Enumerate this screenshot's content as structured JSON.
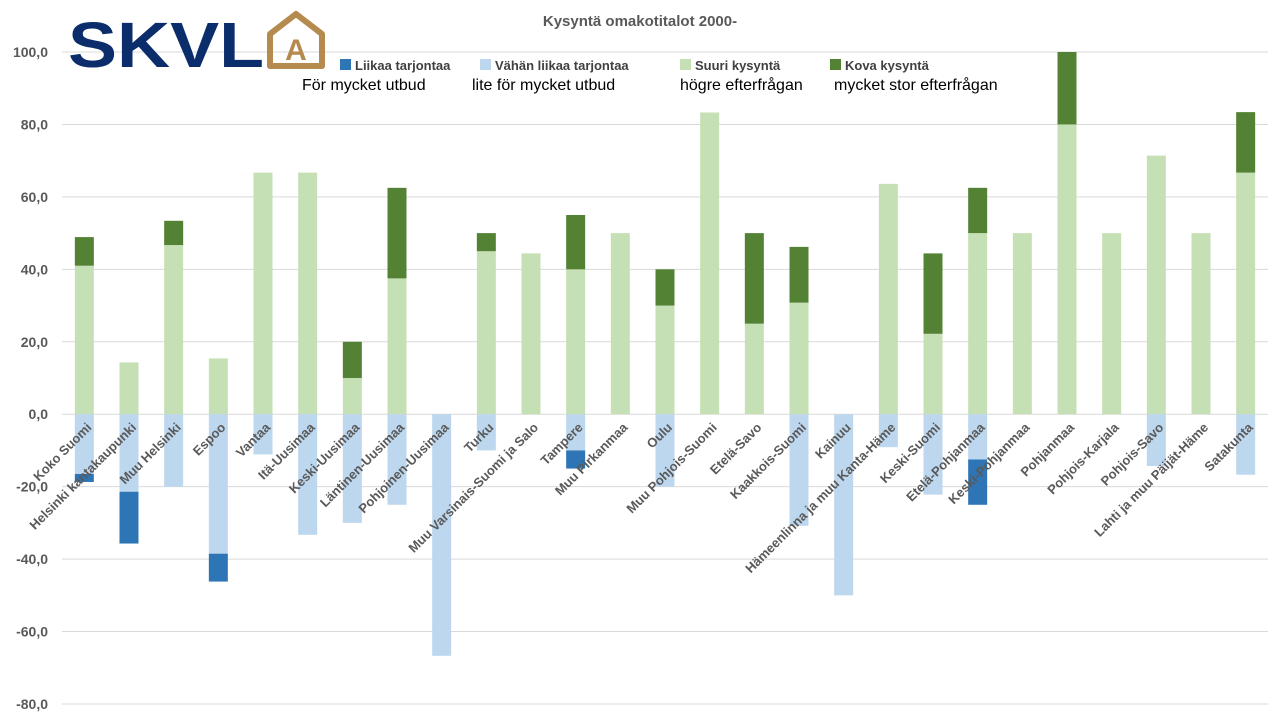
{
  "logo": {
    "text": "SKVL",
    "mark": "A",
    "text_color": "#0b2d6b",
    "mark_color": "#b58a4e"
  },
  "chart_data": {
    "type": "bar",
    "stacked": true,
    "title": "Kysyntä omakotitalot 2000-",
    "xlabel": "",
    "ylabel": "",
    "ylim": [
      -80,
      100
    ],
    "yticks": [
      100,
      80,
      60,
      40,
      20,
      0,
      -20,
      -40,
      -60,
      -80
    ],
    "ytick_labels": [
      "100,0",
      "80,0",
      "60,0",
      "40,0",
      "20,0",
      "0,0",
      "-20,0",
      "-40,0",
      "-60,0",
      "-80,0"
    ],
    "grid": true,
    "legend_position": "top",
    "categories": [
      "Koko Suomi",
      "Helsinki kantakaupunki",
      "Muu Helsinki",
      "Espoo",
      "Vantaa",
      "Itä-Uusimaa",
      "Keski-Uusimaa",
      "Läntinen-Uusimaa",
      "Pohjoinen-Uusimaa",
      "Turku",
      "Muu Varsinais-Suomi ja Salo",
      "Tampere",
      "Muu Pirkanmaa",
      "Oulu",
      "Muu Pohjois-Suomi",
      "Etelä-Savo",
      "Kaakkois-Suomi",
      "Kainuu",
      "Hämeenlinna ja muu Kanta-Häme",
      "Keski-Suomi",
      "Etelä-Pohjanmaa",
      "Keski-Pohjanmaa",
      "Pohjanmaa",
      "Pohjois-Karjala",
      "Pohjois-Savo",
      "Lahti ja muu Päijät-Häme",
      "Satakunta"
    ],
    "series": [
      {
        "name": "Liikaa tarjontaa",
        "subtitle": "För mycket utbud",
        "color": "#2e75b6",
        "values": [
          -2.2,
          -14.3,
          0,
          -7.7,
          0,
          0,
          0,
          0,
          0,
          0,
          0,
          -5,
          0,
          0,
          0,
          0,
          0,
          0,
          0,
          0,
          -12.5,
          0,
          0,
          0,
          0,
          0,
          0
        ]
      },
      {
        "name": "Vähän liikaa tarjontaa",
        "subtitle": "lite för mycket utbud",
        "color": "#bdd7ee",
        "values": [
          -16.5,
          -21.4,
          -20,
          -38.5,
          -11.1,
          -33.3,
          -30,
          -25,
          -66.7,
          -10,
          0,
          -10,
          0,
          -20,
          0,
          0,
          -30.8,
          -50,
          -9.1,
          -22.2,
          -12.5,
          0,
          0,
          0,
          -14.3,
          0,
          -16.7
        ]
      },
      {
        "name": "Suuri kysyntä",
        "subtitle": "högre efterfrågan",
        "color": "#c5e0b4",
        "values": [
          41,
          14.3,
          46.7,
          15.4,
          66.7,
          66.7,
          10,
          37.5,
          0,
          45,
          44.4,
          40,
          50,
          30,
          83.3,
          25,
          30.8,
          0,
          63.6,
          22.2,
          50,
          50,
          80,
          50,
          71.4,
          50,
          66.7
        ]
      },
      {
        "name": "Kova kysyntä",
        "subtitle": "mycket stor efterfrågan",
        "color": "#548235",
        "values": [
          7.9,
          0,
          6.7,
          0,
          0,
          0,
          10,
          25,
          0,
          5,
          0,
          15,
          0,
          10,
          0,
          25,
          15.4,
          0,
          0,
          22.2,
          12.5,
          0,
          20,
          0,
          0,
          0,
          16.7
        ]
      }
    ]
  }
}
